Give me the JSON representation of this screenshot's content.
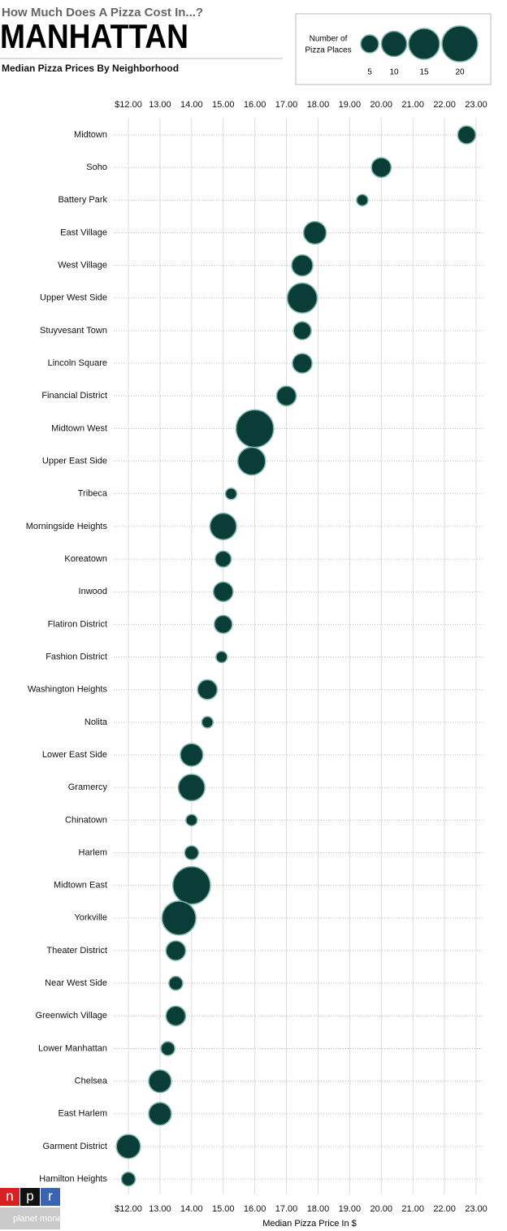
{
  "chart_data": {
    "type": "bubble",
    "kicker": "How Much Does A Pizza Cost In...?",
    "title": "MANHATTAN",
    "subtitle": "Median Pizza Prices By Neighborhood",
    "x_label": "Median Pizza Price In $",
    "categories": [
      "Midtown",
      "Soho",
      "Battery Park",
      "East Village",
      "West Village",
      "Upper West Side",
      "Stuyvesant Town",
      "Lincoln Square",
      "Financial District",
      "Midtown West",
      "Upper East Side",
      "Tribeca",
      "Morningside Heights",
      "Koreatown",
      "Inwood",
      "Flatiron District",
      "Fashion District",
      "Washington Heights",
      "Nolita",
      "Lower East Side",
      "Gramercy",
      "Chinatown",
      "Harlem",
      "Midtown East",
      "Yorkville",
      "Theater District",
      "Near West Side",
      "Greenwich Village",
      "Lower Manhattan",
      "Chelsea",
      "East Harlem",
      "Garment District",
      "Hamilton Heights"
    ],
    "values": [
      22.7,
      20.0,
      19.4,
      17.9,
      17.5,
      17.5,
      17.5,
      17.5,
      17.0,
      16.0,
      15.9,
      15.25,
      15.0,
      15.0,
      15.0,
      15.0,
      14.95,
      14.5,
      14.5,
      14.0,
      14.0,
      14.0,
      14.0,
      14.0,
      13.6,
      13.5,
      13.5,
      13.5,
      13.25,
      13.0,
      13.0,
      12.0,
      12.0
    ],
    "sizes": [
      5,
      6,
      2,
      8,
      7,
      14,
      5,
      6,
      6,
      22,
      12,
      2,
      11,
      4,
      6,
      5,
      2,
      6,
      2,
      8,
      11,
      2,
      3,
      22,
      18,
      6,
      3,
      6,
      3,
      8,
      8,
      9,
      3
    ],
    "color": "#0b3d38",
    "edge_color": "#7fb5a8",
    "xlim": [
      12,
      23
    ],
    "xticks": [
      {
        "value": 12,
        "label": "$12.00"
      },
      {
        "value": 13,
        "label": "13.00"
      },
      {
        "value": 14,
        "label": "14.00"
      },
      {
        "value": 15,
        "label": "15.00"
      },
      {
        "value": 16,
        "label": "16.00"
      },
      {
        "value": 17,
        "label": "17.00"
      },
      {
        "value": 18,
        "label": "18.00"
      },
      {
        "value": 19,
        "label": "19.00"
      },
      {
        "value": 20,
        "label": "20.00"
      },
      {
        "value": 21,
        "label": "21.00"
      },
      {
        "value": 22,
        "label": "22.00"
      },
      {
        "value": 23,
        "label": "23.00"
      }
    ],
    "grid": true,
    "size_legend": {
      "title_lines": [
        "Number of",
        "Pizza Places"
      ],
      "values": [
        5,
        10,
        15,
        20
      ]
    },
    "logo": {
      "letters": [
        "n",
        "p",
        "r"
      ],
      "sub": "planet money"
    }
  }
}
